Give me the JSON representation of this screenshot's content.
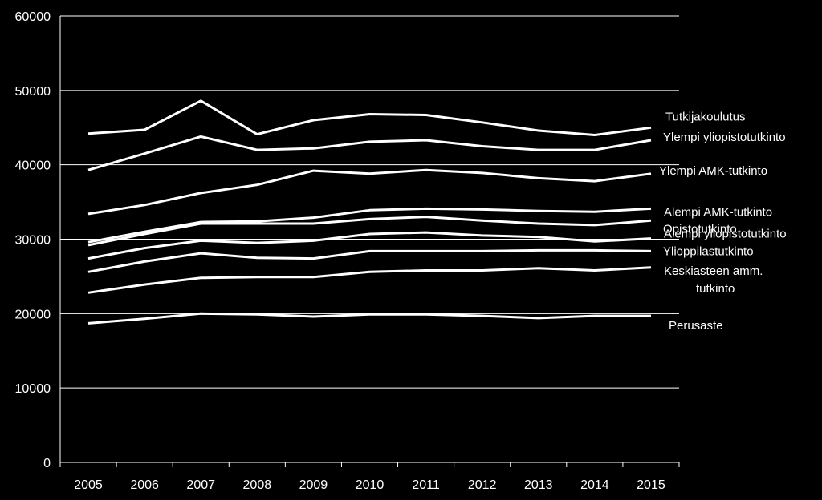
{
  "chart_data": {
    "type": "line",
    "title": "",
    "xlabel": "",
    "ylabel": "",
    "x": [
      "2005",
      "2006",
      "2007",
      "2008",
      "2009",
      "2010",
      "2011",
      "2012",
      "2013",
      "2014",
      "2015"
    ],
    "ylim": [
      0,
      60000
    ],
    "yticks": [
      "0",
      "10000",
      "20000",
      "30000",
      "40000",
      "50000",
      "60000"
    ],
    "grid": true,
    "line_color": "#ffffff",
    "background": "#000000",
    "series": [
      {
        "name": "Tutkijakoulutus",
        "values": [
          44200,
          44700,
          48600,
          44100,
          46000,
          46800,
          46700,
          45700,
          44600,
          44000,
          45000
        ]
      },
      {
        "name": "Ylempi yliopistotutkinto",
        "values": [
          39300,
          41500,
          43800,
          42000,
          42200,
          43100,
          43300,
          42500,
          42000,
          42000,
          43300
        ]
      },
      {
        "name": "Ylempi AMK-tutkinto",
        "values": [
          33400,
          34600,
          36200,
          37300,
          39200,
          38800,
          39300,
          38900,
          38200,
          37800,
          38800
        ]
      },
      {
        "name": "Alempi AMK-tutkinto",
        "values": [
          29600,
          31000,
          32300,
          32400,
          32900,
          33900,
          34100,
          34000,
          33800,
          33700,
          34100
        ]
      },
      {
        "name": "Opistotutkinto",
        "values": [
          29200,
          30700,
          32100,
          32100,
          32100,
          32700,
          33000,
          32500,
          32100,
          31900,
          32500
        ]
      },
      {
        "name": "Alempi yliopistotutkinto",
        "values": [
          27400,
          28800,
          29800,
          29500,
          29800,
          30700,
          30900,
          30500,
          30300,
          29700,
          30100
        ]
      },
      {
        "name": "Ylioppilastutkinto",
        "values": [
          25600,
          27000,
          28100,
          27500,
          27400,
          28400,
          28400,
          28400,
          28500,
          28500,
          28400
        ]
      },
      {
        "name": "Keskiasteen amm. tutkinto",
        "label_lines": [
          "Keskiasteen amm.",
          "tutkinto"
        ],
        "values": [
          22800,
          23900,
          24800,
          24900,
          24900,
          25600,
          25800,
          25800,
          26100,
          25800,
          26200
        ]
      },
      {
        "name": "Perusaste",
        "values": [
          18700,
          19300,
          20000,
          19900,
          19600,
          19900,
          19900,
          19700,
          19400,
          19700,
          19700
        ]
      }
    ]
  }
}
